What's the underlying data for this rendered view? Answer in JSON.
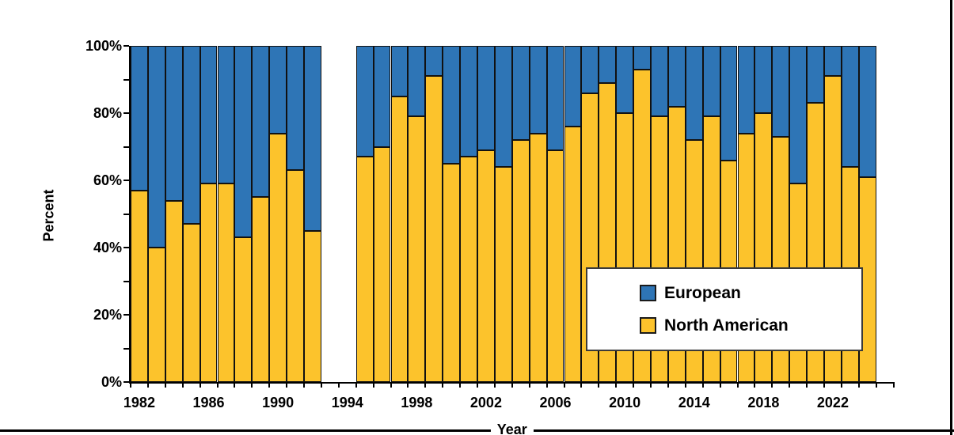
{
  "chart_data": {
    "type": "bar",
    "stacked": true,
    "percent_stacked": true,
    "title": "",
    "xlabel": "Year",
    "ylabel": "Percent",
    "ylim": [
      0,
      100
    ],
    "ytick_major_step": 20,
    "ytick_minor_step": 10,
    "ytick_labels": [
      "0%",
      "20%",
      "40%",
      "60%",
      "80%",
      "100%"
    ],
    "xtick_labeled_years": [
      1982,
      1986,
      1990,
      1994,
      1998,
      2002,
      2006,
      2010,
      2014,
      2018,
      2022
    ],
    "gap_years_no_data": [
      1993,
      1994
    ],
    "grid": "off",
    "categories": [
      1982,
      1983,
      1984,
      1985,
      1986,
      1987,
      1988,
      1989,
      1990,
      1991,
      1992,
      1995,
      1996,
      1997,
      1998,
      1999,
      2000,
      2001,
      2002,
      2003,
      2004,
      2005,
      2006,
      2007,
      2008,
      2009,
      2010,
      2011,
      2012,
      2013,
      2014,
      2015,
      2016,
      2017,
      2018,
      2019,
      2020,
      2021,
      2022,
      2023,
      2024
    ],
    "series": [
      {
        "name": "North American",
        "color": "#FCC32C",
        "values": [
          57,
          40,
          54,
          47,
          59,
          59,
          43,
          55,
          74,
          63,
          45,
          67,
          70,
          85,
          79,
          91,
          65,
          67,
          69,
          64,
          72,
          74,
          69,
          76,
          86,
          89,
          80,
          93,
          79,
          82,
          72,
          79,
          66,
          74,
          80,
          73,
          59,
          83,
          91,
          64,
          61
        ]
      },
      {
        "name": "European",
        "color": "#2E75B6",
        "values": [
          43,
          60,
          46,
          53,
          41,
          41,
          57,
          45,
          26,
          37,
          55,
          33,
          30,
          15,
          21,
          9,
          35,
          33,
          31,
          36,
          28,
          26,
          31,
          24,
          14,
          11,
          20,
          7,
          21,
          18,
          28,
          21,
          34,
          26,
          20,
          27,
          41,
          17,
          9,
          36,
          39
        ]
      }
    ],
    "legend": {
      "position": "inside lower right",
      "entries": [
        {
          "label": "European",
          "color": "#2E75B6"
        },
        {
          "label": "North American",
          "color": "#FCC32C"
        }
      ]
    },
    "bar_outline_color": "#111111"
  }
}
